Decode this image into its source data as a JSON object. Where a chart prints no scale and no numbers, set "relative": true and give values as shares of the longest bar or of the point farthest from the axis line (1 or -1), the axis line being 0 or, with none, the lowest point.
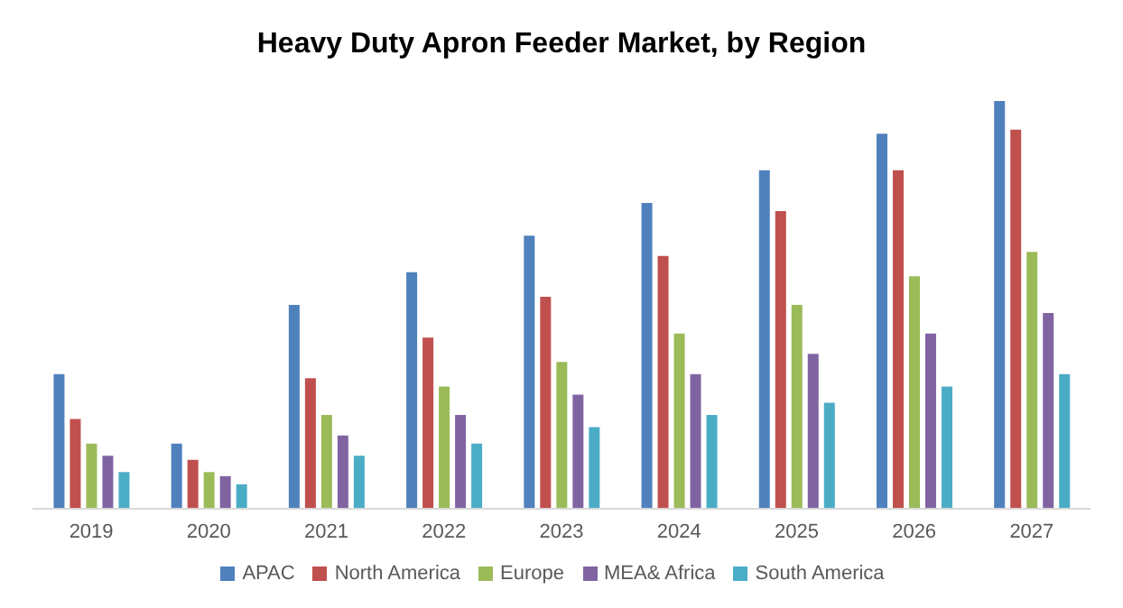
{
  "chart_data": {
    "type": "bar",
    "title": "Heavy Duty Apron Feeder Market, by Region",
    "relative": true,
    "categories": [
      "2019",
      "2020",
      "2021",
      "2022",
      "2023",
      "2024",
      "2025",
      "2026",
      "2027"
    ],
    "legend": "bottom",
    "grid": false,
    "series": [
      {
        "name": "APAC",
        "color": "#4f81bd",
        "values": [
          0.33,
          0.16,
          0.5,
          0.58,
          0.67,
          0.75,
          0.83,
          0.92,
          1
        ]
      },
      {
        "name": "North America",
        "color": "#c0504d",
        "values": [
          0.22,
          0.12,
          0.32,
          0.42,
          0.52,
          0.62,
          0.73,
          0.83,
          0.93
        ]
      },
      {
        "name": "Europe",
        "color": "#9bbb59",
        "values": [
          0.16,
          0.09,
          0.23,
          0.3,
          0.36,
          0.43,
          0.5,
          0.57,
          0.63
        ]
      },
      {
        "name": "MEA& Africa",
        "color": "#8064a2",
        "values": [
          0.13,
          0.08,
          0.18,
          0.23,
          0.28,
          0.33,
          0.38,
          0.43,
          0.48
        ]
      },
      {
        "name": "South America",
        "color": "#4bacc6",
        "values": [
          0.09,
          0.06,
          0.13,
          0.16,
          0.2,
          0.23,
          0.26,
          0.3,
          0.33
        ]
      }
    ]
  }
}
